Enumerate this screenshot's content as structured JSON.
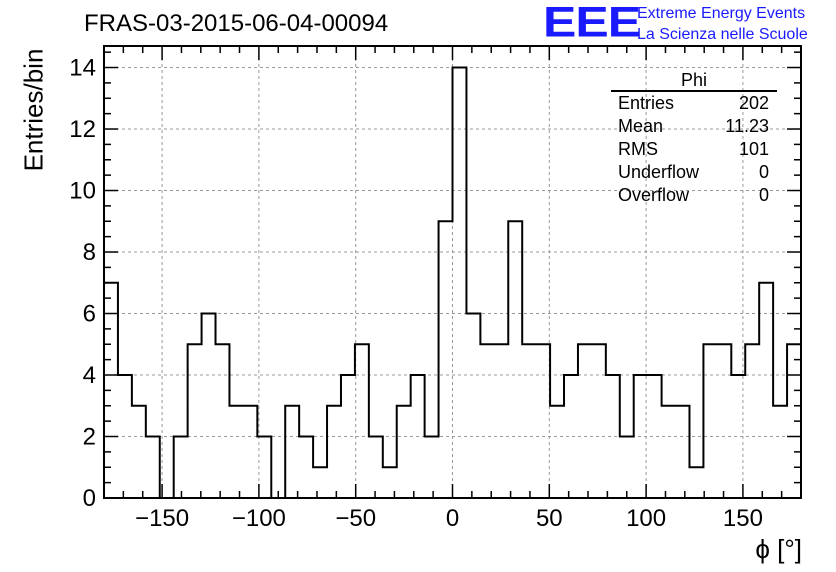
{
  "chart_data": {
    "type": "bar",
    "title": "FRAS-03-2015-06-04-00094",
    "xlabel": "ϕ [°]",
    "ylabel": "Entries/bin",
    "xlim": [
      -180,
      180
    ],
    "ylim": [
      0,
      14.7
    ],
    "grid": true,
    "x_ticks": [
      -150,
      -100,
      -50,
      0,
      50,
      100,
      150
    ],
    "y_ticks": [
      0,
      2,
      4,
      6,
      8,
      10,
      12,
      14
    ],
    "bin_width": 7.2,
    "values": [
      7,
      4,
      3,
      2,
      0,
      2,
      5,
      6,
      5,
      3,
      3,
      2,
      0,
      3,
      2,
      1,
      3,
      4,
      5,
      2,
      1,
      3,
      4,
      2,
      9,
      14,
      6,
      5,
      5,
      9,
      5,
      5,
      3,
      4,
      5,
      5,
      4,
      2,
      4,
      4,
      3,
      3,
      1,
      5,
      5,
      4,
      5,
      7,
      3,
      5
    ],
    "stats": {
      "name": "Phi",
      "rows": [
        {
          "label": "Entries",
          "value": "202"
        },
        {
          "label": "Mean",
          "value": "11.23"
        },
        {
          "label": "RMS",
          "value": "101"
        },
        {
          "label": "Underflow",
          "value": "0"
        },
        {
          "label": "Overflow",
          "value": "0"
        }
      ]
    }
  },
  "logo": {
    "mark": "EEE",
    "line1": "Extreme Energy Events",
    "line2": "La Scienza nelle Scuole",
    "color": "#1a1aff"
  }
}
